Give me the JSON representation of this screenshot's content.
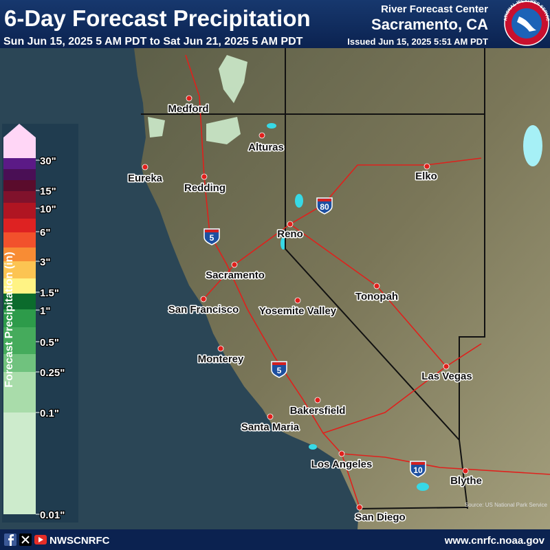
{
  "header": {
    "title": "6-Day Forecast Precipitation",
    "period": "Sun Jun 15, 2025 5 AM PDT to Sat Jun 21, 2025 5 AM PDT",
    "center": "River Forecast Center",
    "location": "Sacramento, CA",
    "issued": "Issued Jun 15, 2025 5:51 AM PDT",
    "logo": "NATIONAL WEATHER SERVICE"
  },
  "legend": {
    "title": "Forecast Precipitation (in)",
    "labels": [
      "30\"",
      "15\"",
      "10\"",
      "6\"",
      "3\"",
      "1.5\"",
      "1\"",
      "0.5\"",
      "0.25\"",
      "0.1\"",
      "0.01\""
    ],
    "colors": [
      "#ffd6f6",
      "#5b1a86",
      "#4a0f55",
      "#5a0c2c",
      "#80122c",
      "#b01522",
      "#de2222",
      "#f2512c",
      "#f88c34",
      "#fcc452",
      "#fff384",
      "#0b6b2c",
      "#2d9b4a",
      "#45ab5c",
      "#70c27e",
      "#a9dcaa",
      "#cdebcc"
    ]
  },
  "cities": [
    "Medford",
    "Alturas",
    "Eureka",
    "Redding",
    "Elko",
    "Reno",
    "Sacramento",
    "San Francisco",
    "Yosemite Valley",
    "Tonopah",
    "Monterey",
    "Las Vegas",
    "Bakersfield",
    "Santa Maria",
    "Los Angeles",
    "Blythe",
    "San Diego"
  ],
  "interstates": [
    "80",
    "5",
    "5",
    "10"
  ],
  "source": "Source: US National Park Service",
  "footer": {
    "handle": "NWSCNRFC",
    "url": "www.cnrfc.noaa.gov"
  }
}
